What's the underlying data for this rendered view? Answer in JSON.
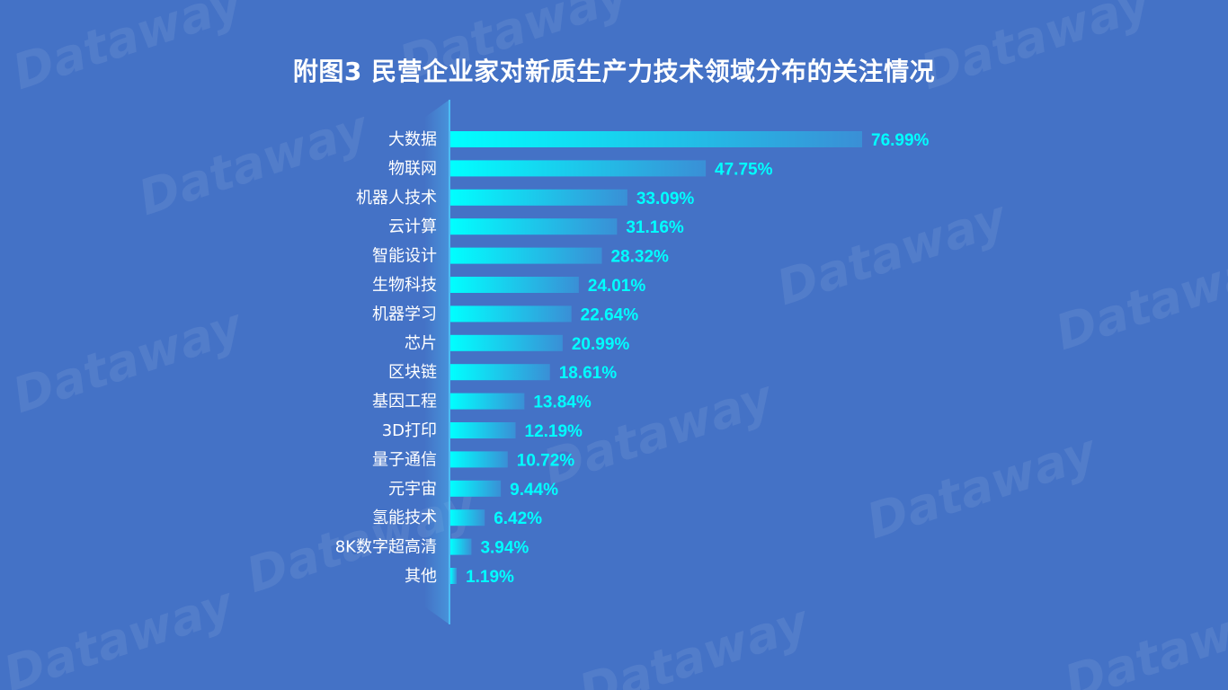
{
  "chart_data": {
    "type": "bar",
    "orientation": "horizontal",
    "title": "附图3  民营企业家对新质生产力技术领域分布的关注情况",
    "categories": [
      "大数据",
      "物联网",
      "机器人技术",
      "云计算",
      "智能设计",
      "生物科技",
      "机器学习",
      "芯片",
      "区块链",
      "基因工程",
      "3D打印",
      "量子通信",
      "元宇宙",
      "氢能技术",
      "8K数字超高清",
      "其他"
    ],
    "values": [
      76.99,
      47.75,
      33.09,
      31.16,
      28.32,
      24.01,
      22.64,
      20.99,
      18.61,
      13.84,
      12.19,
      10.72,
      9.44,
      6.42,
      3.94,
      1.19
    ],
    "value_labels": [
      "76.99%",
      "47.75%",
      "33.09%",
      "31.16%",
      "28.32%",
      "24.01%",
      "22.64%",
      "20.99%",
      "18.61%",
      "13.84%",
      "12.19%",
      "10.72%",
      "9.44%",
      "6.42%",
      "3.94%",
      "1.19%"
    ],
    "unit": "%",
    "xlim": [
      0,
      100
    ],
    "grid": false,
    "legend": "none"
  },
  "colors": {
    "background": "#4472c6",
    "bar_start": "#00ffff",
    "bar_end": "#3a8fd6",
    "value_label": "#00ffff",
    "category_label": "#ffffff",
    "axis_line": "#4fd0ff"
  },
  "watermark_text": "Dataway"
}
